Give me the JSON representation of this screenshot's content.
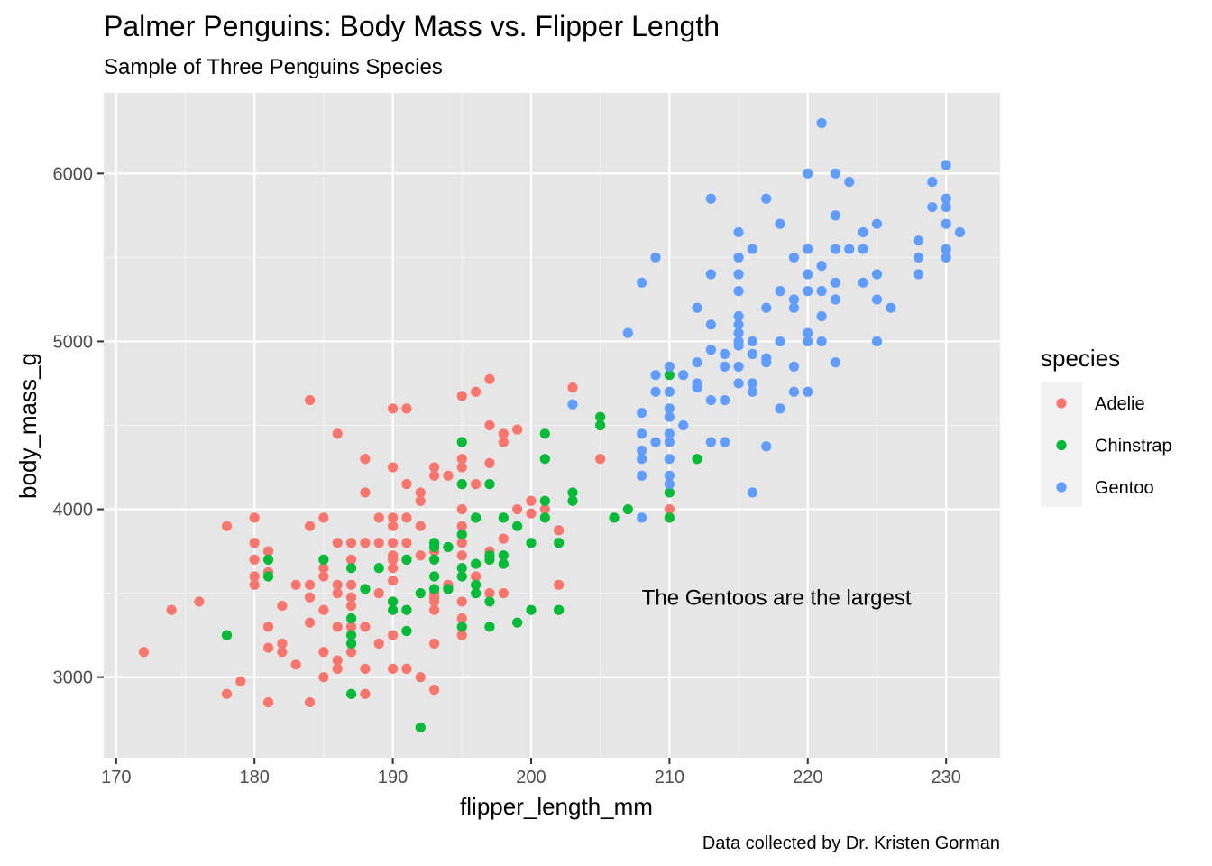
{
  "chart_data": {
    "type": "scatter",
    "title": "Palmer Penguins: Body Mass vs. Flipper Length",
    "subtitle": "Sample of Three Penguins Species",
    "xlabel": "flipper_length_mm",
    "ylabel": "body_mass_g",
    "caption": "Data collected by Dr. Kristen Gorman",
    "annotation": {
      "text": "The Gentoos are the largest",
      "x": 208,
      "y": 3475
    },
    "xlim": [
      169.1,
      233.9
    ],
    "ylim": [
      2520,
      6480
    ],
    "xticks": [
      170,
      180,
      190,
      200,
      210,
      220,
      230
    ],
    "yticks": [
      3000,
      4000,
      5000,
      6000
    ],
    "grid": true,
    "background": "#e6e6e6",
    "legend": {
      "title": "species",
      "position": "right"
    },
    "series": [
      {
        "name": "Adelie",
        "color": "#F8766D",
        "points": [
          [
            172,
            3150
          ],
          [
            174,
            3400
          ],
          [
            176,
            3450
          ],
          [
            178,
            3900
          ],
          [
            178,
            2900
          ],
          [
            179,
            2975
          ],
          [
            180,
            3950
          ],
          [
            180,
            3800
          ],
          [
            180,
            3700
          ],
          [
            180,
            3600
          ],
          [
            180,
            3550
          ],
          [
            181,
            3750
          ],
          [
            181,
            3625
          ],
          [
            181,
            3300
          ],
          [
            181,
            3175
          ],
          [
            181,
            2850
          ],
          [
            182,
            3425
          ],
          [
            182,
            3200
          ],
          [
            182,
            3150
          ],
          [
            183,
            3550
          ],
          [
            183,
            3075
          ],
          [
            184,
            4650
          ],
          [
            184,
            3900
          ],
          [
            184,
            3550
          ],
          [
            184,
            3475
          ],
          [
            184,
            3325
          ],
          [
            184,
            2850
          ],
          [
            185,
            3950
          ],
          [
            185,
            3650
          ],
          [
            185,
            3600
          ],
          [
            185,
            3400
          ],
          [
            185,
            3150
          ],
          [
            185,
            3000
          ],
          [
            186,
            4450
          ],
          [
            186,
            3800
          ],
          [
            186,
            3550
          ],
          [
            186,
            3500
          ],
          [
            186,
            3300
          ],
          [
            186,
            3100
          ],
          [
            186,
            3050
          ],
          [
            187,
            3800
          ],
          [
            187,
            3700
          ],
          [
            187,
            3550
          ],
          [
            187,
            3475
          ],
          [
            187,
            3425
          ],
          [
            187,
            3300
          ],
          [
            187,
            3150
          ],
          [
            188,
            4300
          ],
          [
            188,
            4100
          ],
          [
            188,
            3800
          ],
          [
            188,
            3300
          ],
          [
            188,
            3050
          ],
          [
            188,
            2900
          ],
          [
            189,
            3950
          ],
          [
            189,
            3800
          ],
          [
            189,
            3500
          ],
          [
            189,
            3200
          ],
          [
            190,
            4600
          ],
          [
            190,
            4250
          ],
          [
            190,
            3950
          ],
          [
            190,
            3900
          ],
          [
            190,
            3800
          ],
          [
            190,
            3725
          ],
          [
            190,
            3700
          ],
          [
            190,
            3650
          ],
          [
            190,
            3575
          ],
          [
            190,
            3450
          ],
          [
            190,
            3250
          ],
          [
            190,
            3050
          ],
          [
            191,
            4600
          ],
          [
            191,
            4150
          ],
          [
            191,
            3950
          ],
          [
            191,
            3800
          ],
          [
            191,
            3700
          ],
          [
            191,
            3400
          ],
          [
            191,
            3050
          ],
          [
            192,
            4100
          ],
          [
            192,
            4050
          ],
          [
            192,
            3900
          ],
          [
            192,
            3725
          ],
          [
            192,
            3000
          ],
          [
            193,
            4250
          ],
          [
            193,
            4200
          ],
          [
            193,
            3750
          ],
          [
            193,
            3500
          ],
          [
            193,
            3475
          ],
          [
            193,
            3450
          ],
          [
            193,
            3400
          ],
          [
            193,
            3200
          ],
          [
            193,
            2925
          ],
          [
            194,
            4200
          ],
          [
            194,
            3550
          ],
          [
            194,
            3525
          ],
          [
            195,
            4675
          ],
          [
            195,
            4300
          ],
          [
            195,
            4250
          ],
          [
            195,
            4150
          ],
          [
            195,
            4000
          ],
          [
            195,
            3900
          ],
          [
            195,
            3800
          ],
          [
            195,
            3725
          ],
          [
            195,
            3450
          ],
          [
            195,
            3350
          ],
          [
            195,
            3250
          ],
          [
            196,
            4700
          ],
          [
            196,
            4150
          ],
          [
            196,
            3600
          ],
          [
            197,
            4775
          ],
          [
            197,
            4500
          ],
          [
            197,
            4275
          ],
          [
            197,
            3750
          ],
          [
            197,
            3500
          ],
          [
            198,
            4450
          ],
          [
            198,
            4400
          ],
          [
            198,
            3825
          ],
          [
            198,
            3500
          ],
          [
            199,
            4475
          ],
          [
            199,
            4000
          ],
          [
            200,
            4050
          ],
          [
            200,
            3975
          ],
          [
            201,
            4000
          ],
          [
            202,
            3875
          ],
          [
            202,
            3550
          ],
          [
            203,
            4725
          ],
          [
            205,
            4300
          ],
          [
            210,
            4000
          ]
        ]
      },
      {
        "name": "Chinstrap",
        "color": "#00BA38",
        "points": [
          [
            178,
            3250
          ],
          [
            181,
            3700
          ],
          [
            181,
            3600
          ],
          [
            185,
            3700
          ],
          [
            187,
            3650
          ],
          [
            187,
            3350
          ],
          [
            187,
            3250
          ],
          [
            187,
            3200
          ],
          [
            187,
            2900
          ],
          [
            188,
            3525
          ],
          [
            189,
            3650
          ],
          [
            190,
            3450
          ],
          [
            190,
            3400
          ],
          [
            191,
            3700
          ],
          [
            191,
            3400
          ],
          [
            191,
            3275
          ],
          [
            192,
            3500
          ],
          [
            192,
            2700
          ],
          [
            193,
            3800
          ],
          [
            193,
            3775
          ],
          [
            193,
            3700
          ],
          [
            193,
            3600
          ],
          [
            193,
            3525
          ],
          [
            194,
            3775
          ],
          [
            194,
            3525
          ],
          [
            195,
            4400
          ],
          [
            195,
            4150
          ],
          [
            195,
            3850
          ],
          [
            195,
            3650
          ],
          [
            195,
            3600
          ],
          [
            195,
            3300
          ],
          [
            196,
            3950
          ],
          [
            196,
            3675
          ],
          [
            196,
            3550
          ],
          [
            196,
            3500
          ],
          [
            197,
            4150
          ],
          [
            197,
            3725
          ],
          [
            197,
            3700
          ],
          [
            197,
            3450
          ],
          [
            197,
            3300
          ],
          [
            198,
            3950
          ],
          [
            198,
            3725
          ],
          [
            198,
            3675
          ],
          [
            199,
            3900
          ],
          [
            199,
            3325
          ],
          [
            200,
            3800
          ],
          [
            200,
            3400
          ],
          [
            201,
            4450
          ],
          [
            201,
            4300
          ],
          [
            201,
            4050
          ],
          [
            201,
            3950
          ],
          [
            202,
            3800
          ],
          [
            202,
            3400
          ],
          [
            203,
            4100
          ],
          [
            203,
            4050
          ],
          [
            205,
            4550
          ],
          [
            205,
            4500
          ],
          [
            206,
            3950
          ],
          [
            207,
            4000
          ],
          [
            210,
            4800
          ],
          [
            210,
            4100
          ],
          [
            210,
            3950
          ],
          [
            212,
            4300
          ]
        ]
      },
      {
        "name": "Gentoo",
        "color": "#619CFF",
        "points": [
          [
            203,
            4625
          ],
          [
            207,
            5050
          ],
          [
            208,
            5350
          ],
          [
            208,
            4575
          ],
          [
            208,
            4450
          ],
          [
            208,
            4350
          ],
          [
            208,
            4300
          ],
          [
            208,
            4200
          ],
          [
            208,
            3950
          ],
          [
            209,
            5500
          ],
          [
            209,
            4800
          ],
          [
            209,
            4700
          ],
          [
            209,
            4400
          ],
          [
            210,
            4850
          ],
          [
            210,
            4700
          ],
          [
            210,
            4600
          ],
          [
            210,
            4550
          ],
          [
            210,
            4450
          ],
          [
            210,
            4400
          ],
          [
            210,
            4300
          ],
          [
            210,
            4200
          ],
          [
            210,
            4150
          ],
          [
            211,
            4800
          ],
          [
            211,
            4500
          ],
          [
            212,
            5200
          ],
          [
            212,
            4875
          ],
          [
            212,
            4750
          ],
          [
            212,
            4725
          ],
          [
            213,
            5850
          ],
          [
            213,
            5400
          ],
          [
            213,
            5100
          ],
          [
            213,
            4950
          ],
          [
            213,
            4650
          ],
          [
            213,
            4400
          ],
          [
            214,
            4925
          ],
          [
            214,
            4850
          ],
          [
            214,
            4650
          ],
          [
            214,
            4400
          ],
          [
            215,
            5650
          ],
          [
            215,
            5500
          ],
          [
            215,
            5400
          ],
          [
            215,
            5300
          ],
          [
            215,
            5150
          ],
          [
            215,
            5100
          ],
          [
            215,
            5050
          ],
          [
            215,
            5000
          ],
          [
            215,
            4975
          ],
          [
            215,
            4850
          ],
          [
            215,
            4750
          ],
          [
            216,
            5550
          ],
          [
            216,
            5000
          ],
          [
            216,
            4925
          ],
          [
            216,
            4750
          ],
          [
            216,
            4700
          ],
          [
            216,
            4100
          ],
          [
            217,
            5850
          ],
          [
            217,
            5200
          ],
          [
            217,
            4900
          ],
          [
            217,
            4875
          ],
          [
            217,
            4375
          ],
          [
            218,
            5700
          ],
          [
            218,
            5300
          ],
          [
            218,
            5000
          ],
          [
            218,
            4600
          ],
          [
            219,
            5500
          ],
          [
            219,
            5250
          ],
          [
            219,
            5200
          ],
          [
            219,
            4850
          ],
          [
            219,
            4700
          ],
          [
            220,
            6000
          ],
          [
            220,
            5550
          ],
          [
            220,
            5400
          ],
          [
            220,
            5300
          ],
          [
            220,
            5050
          ],
          [
            220,
            5000
          ],
          [
            220,
            4700
          ],
          [
            221,
            6300
          ],
          [
            221,
            5450
          ],
          [
            221,
            5300
          ],
          [
            221,
            5150
          ],
          [
            221,
            5000
          ],
          [
            222,
            6000
          ],
          [
            222,
            5750
          ],
          [
            222,
            5550
          ],
          [
            222,
            5350
          ],
          [
            222,
            5250
          ],
          [
            222,
            4875
          ],
          [
            223,
            5950
          ],
          [
            223,
            5550
          ],
          [
            224,
            5650
          ],
          [
            224,
            5550
          ],
          [
            224,
            5350
          ],
          [
            225,
            5700
          ],
          [
            225,
            5400
          ],
          [
            225,
            5250
          ],
          [
            225,
            5000
          ],
          [
            226,
            5200
          ],
          [
            228,
            5600
          ],
          [
            228,
            5500
          ],
          [
            228,
            5400
          ],
          [
            229,
            5950
          ],
          [
            229,
            5800
          ],
          [
            230,
            6050
          ],
          [
            230,
            5850
          ],
          [
            230,
            5800
          ],
          [
            230,
            5700
          ],
          [
            230,
            5550
          ],
          [
            230,
            5500
          ],
          [
            231,
            5650
          ]
        ]
      }
    ]
  }
}
